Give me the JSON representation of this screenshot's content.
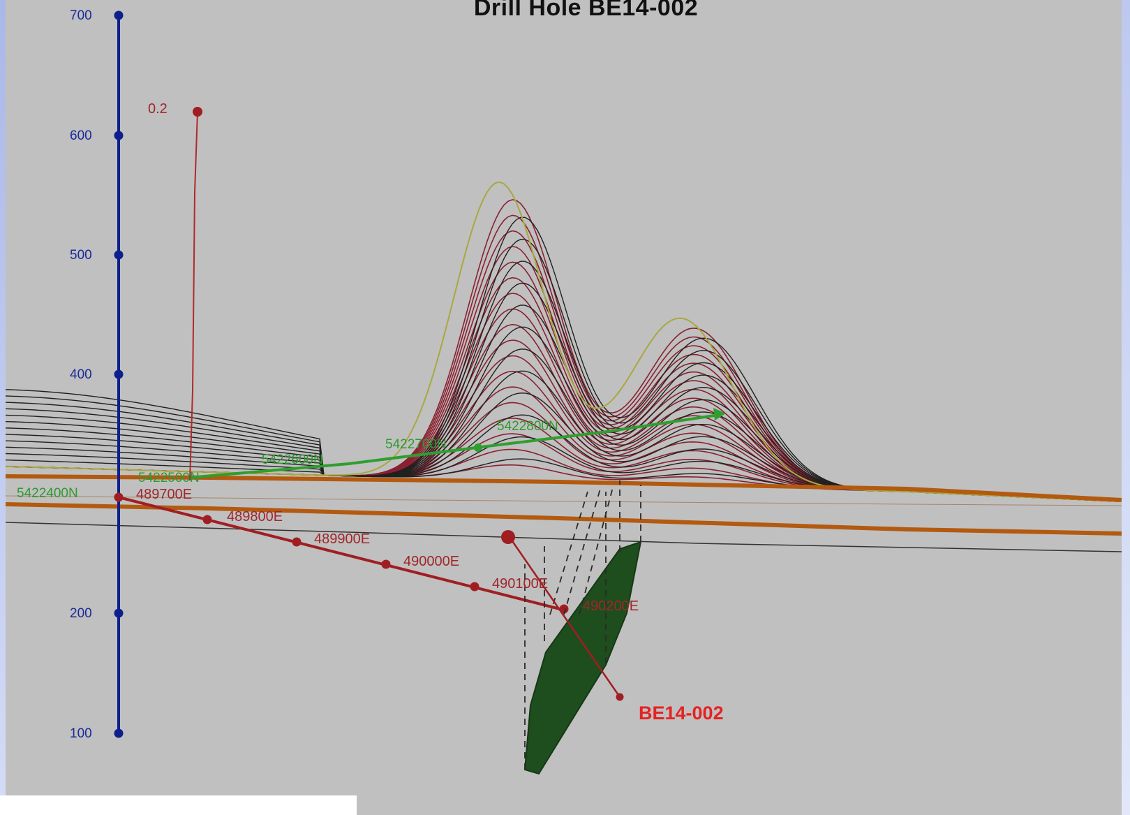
{
  "title": "Drill Hole BE14-002",
  "colors": {
    "background": "#c0c0c0",
    "axis": "#0d1f8c",
    "traverse": "#a01e22",
    "grid_green": "#2f9e2f",
    "horizon": "#b35a10",
    "body": "#1e4d1e",
    "contour_black": "#202020",
    "contour_red": "#8a2030",
    "contour_olive": "#a8a840",
    "hole_label": "#e52222"
  },
  "elevation_axis": {
    "ticks": [
      "700",
      "600",
      "500",
      "400",
      "200",
      "100"
    ]
  },
  "vertical_line_label": "0.2",
  "traverse_labels": [
    "489700E",
    "489800E",
    "489900E",
    "490000E",
    "490100E",
    "490200E"
  ],
  "northing_labels": [
    "5422400N",
    "5422500N",
    "5422600N",
    "5422700N",
    "5422800N"
  ],
  "drill_hole": {
    "id": "BE14-002",
    "target": "green conductor plate",
    "icon": "drill-hole-trace"
  }
}
